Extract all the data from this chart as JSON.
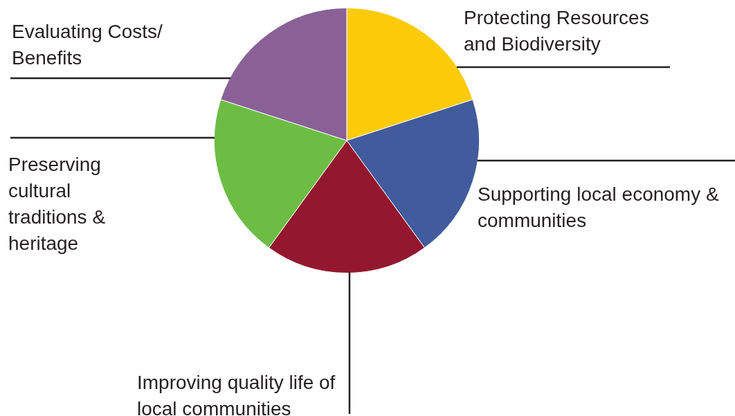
{
  "chart_data": {
    "type": "pie",
    "categories": [
      "Protecting Resources and Biodiversity",
      "Supporting local economy & communities",
      "Improving quality life of local communities",
      "Preserving cultural traditions & heritage",
      "Evaluating Costs/ Benefits"
    ],
    "values": [
      20,
      20,
      20,
      20,
      20
    ],
    "colors": [
      "#fdcb0a",
      "#415b9c",
      "#93182f",
      "#6dbd45",
      "#896196"
    ]
  }
}
